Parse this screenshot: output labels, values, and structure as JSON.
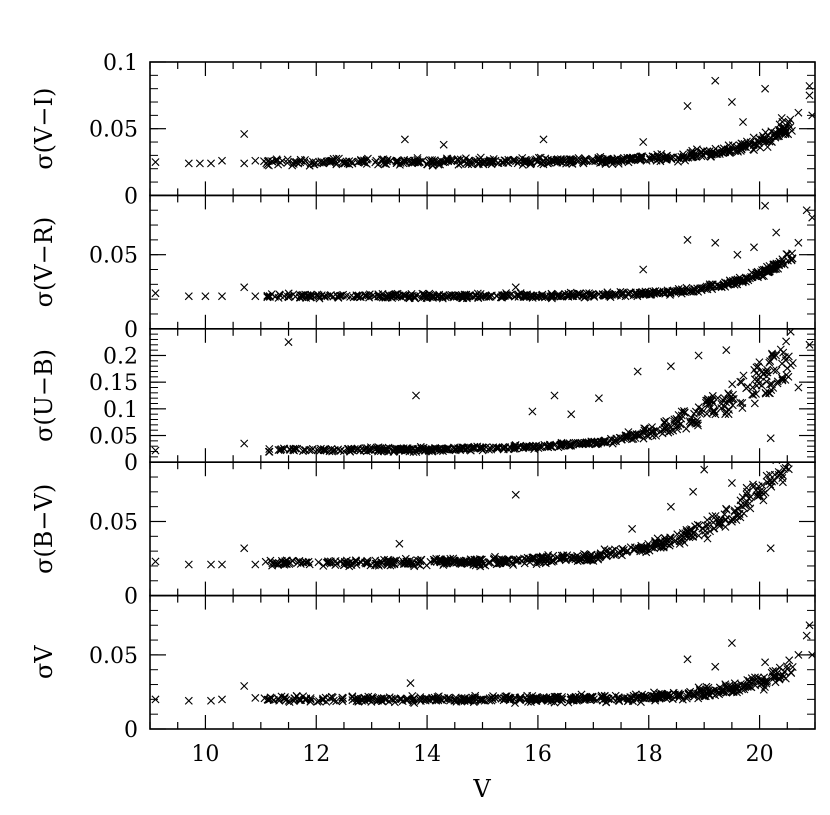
{
  "chart_data": {
    "type": "scatter",
    "layout": "stacked-panels-shared-x",
    "marker": "x",
    "color": "#000000",
    "grid": false,
    "xlabel": "V",
    "xlim": [
      9,
      21
    ],
    "xticks": [
      10,
      12,
      14,
      16,
      18,
      20
    ],
    "panels": [
      {
        "ylabel": "σ(V−I)",
        "ylim": [
          0,
          0.1
        ],
        "yticks": [
          "0",
          "0.05",
          "0.1"
        ],
        "curve": {
          "base": 0.025,
          "amp": 0.025,
          "scale": 1.1,
          "noise": 0.004,
          "fan": 0.0
        },
        "outliers": [
          [
            9.1,
            0.025
          ],
          [
            9.7,
            0.024
          ],
          [
            9.9,
            0.024
          ],
          [
            10.1,
            0.024
          ],
          [
            10.3,
            0.026
          ],
          [
            10.7,
            0.046
          ],
          [
            10.7,
            0.024
          ],
          [
            10.9,
            0.026
          ],
          [
            13.6,
            0.042
          ],
          [
            14.3,
            0.038
          ],
          [
            16.1,
            0.042
          ],
          [
            17.9,
            0.04
          ],
          [
            18.7,
            0.067
          ],
          [
            19.2,
            0.086
          ],
          [
            19.5,
            0.07
          ],
          [
            19.7,
            0.055
          ],
          [
            20.1,
            0.08
          ],
          [
            20.4,
            0.058
          ],
          [
            20.7,
            0.062
          ],
          [
            20.9,
            0.082
          ],
          [
            20.9,
            0.075
          ],
          [
            20.95,
            0.06
          ]
        ]
      },
      {
        "ylabel": "σ(V−R)",
        "ylim": [
          0,
          0.09
        ],
        "yticks": [
          "0",
          "0.05"
        ],
        "curve": {
          "base": 0.022,
          "amp": 0.025,
          "scale": 1.0,
          "noise": 0.0025,
          "fan": 0.0
        },
        "outliers": [
          [
            9.1,
            0.024
          ],
          [
            9.7,
            0.022
          ],
          [
            10.0,
            0.022
          ],
          [
            10.3,
            0.022
          ],
          [
            10.7,
            0.028
          ],
          [
            10.9,
            0.022
          ],
          [
            15.6,
            0.028
          ],
          [
            17.9,
            0.04
          ],
          [
            18.7,
            0.06
          ],
          [
            19.2,
            0.058
          ],
          [
            19.6,
            0.05
          ],
          [
            19.9,
            0.055
          ],
          [
            20.1,
            0.083
          ],
          [
            20.3,
            0.065
          ],
          [
            20.7,
            0.058
          ],
          [
            20.85,
            0.08
          ],
          [
            20.95,
            0.075
          ]
        ]
      },
      {
        "ylabel": "σ(U−B)",
        "ylim": [
          0,
          0.25
        ],
        "yticks": [
          "0",
          "0.05",
          "0.1",
          "0.15",
          "0.2"
        ],
        "curve": {
          "base": 0.022,
          "amp": 0.13,
          "scale": 1.6,
          "noise": 0.006,
          "fan": 0.09
        },
        "outliers": [
          [
            9.1,
            0.022
          ],
          [
            10.7,
            0.035
          ],
          [
            11.5,
            0.225
          ],
          [
            13.8,
            0.125
          ],
          [
            15.9,
            0.095
          ],
          [
            16.3,
            0.125
          ],
          [
            16.6,
            0.09
          ],
          [
            17.1,
            0.12
          ],
          [
            17.8,
            0.17
          ],
          [
            18.4,
            0.18
          ],
          [
            18.9,
            0.2
          ],
          [
            19.4,
            0.21
          ],
          [
            20.3,
            0.2
          ],
          [
            20.7,
            0.14
          ],
          [
            20.9,
            0.22
          ],
          [
            20.2,
            0.045
          ]
        ]
      },
      {
        "ylabel": "σ(B−V)",
        "ylim": [
          0,
          0.09
        ],
        "yticks": [
          "0",
          "0.05"
        ],
        "curve": {
          "base": 0.022,
          "amp": 0.06,
          "scale": 1.35,
          "noise": 0.004,
          "fan": 0.018
        },
        "outliers": [
          [
            9.1,
            0.023
          ],
          [
            9.7,
            0.021
          ],
          [
            10.1,
            0.021
          ],
          [
            10.3,
            0.021
          ],
          [
            10.7,
            0.032
          ],
          [
            10.9,
            0.021
          ],
          [
            13.5,
            0.035
          ],
          [
            15.6,
            0.068
          ],
          [
            17.7,
            0.045
          ],
          [
            18.4,
            0.06
          ],
          [
            18.8,
            0.07
          ],
          [
            19.0,
            0.085
          ],
          [
            19.5,
            0.076
          ],
          [
            20.2,
            0.032
          ]
        ]
      },
      {
        "ylabel": "σV",
        "ylim": [
          0,
          0.09
        ],
        "yticks": [
          "0",
          "0.05"
        ],
        "curve": {
          "base": 0.02,
          "amp": 0.02,
          "scale": 1.0,
          "noise": 0.0035,
          "fan": 0.0
        },
        "outliers": [
          [
            9.1,
            0.02
          ],
          [
            9.7,
            0.019
          ],
          [
            10.1,
            0.019
          ],
          [
            10.3,
            0.02
          ],
          [
            10.7,
            0.029
          ],
          [
            10.9,
            0.021
          ],
          [
            13.7,
            0.031
          ],
          [
            18.7,
            0.047
          ],
          [
            19.2,
            0.042
          ],
          [
            19.5,
            0.058
          ],
          [
            20.1,
            0.045
          ],
          [
            20.7,
            0.05
          ],
          [
            20.85,
            0.063
          ],
          [
            20.9,
            0.07
          ],
          [
            20.95,
            0.05
          ]
        ]
      }
    ]
  }
}
